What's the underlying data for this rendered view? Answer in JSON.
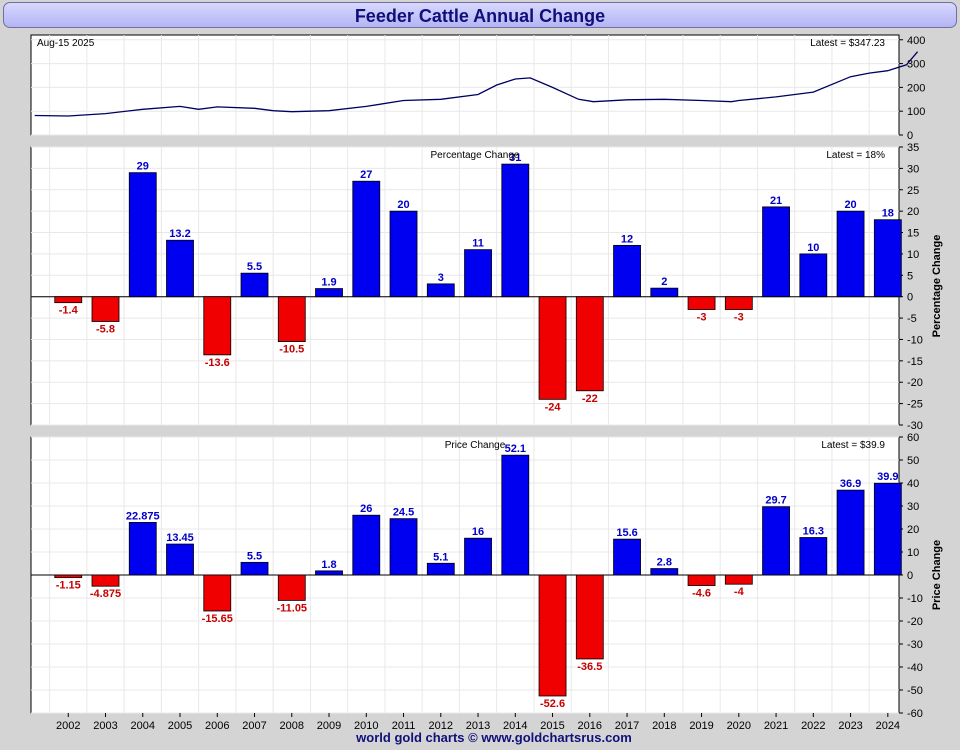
{
  "title": "Feeder Cattle Annual Change",
  "footer": "world gold charts © www.goldchartsrus.com",
  "colors": {
    "positive": "#0000f0",
    "negative": "#f00000",
    "price_line": "#000060",
    "pos_label": "#0000c8",
    "neg_label": "#c80000"
  },
  "chart_data": [
    {
      "type": "line",
      "panel": "price",
      "header_left": "Aug-15  2025",
      "header_right": "Latest = $347.23",
      "ylim": [
        0,
        420
      ],
      "yticks": [
        0,
        100,
        200,
        300,
        400
      ],
      "x": [
        2001.6,
        2002.5,
        2003.5,
        2004.5,
        2005.5,
        2006.0,
        2006.5,
        2007.5,
        2008.0,
        2008.5,
        2009.5,
        2010.5,
        2011.5,
        2012.5,
        2013.5,
        2014.0,
        2014.5,
        2014.9,
        2015.5,
        2016.2,
        2016.6,
        2017.5,
        2018.5,
        2019.5,
        2020.3,
        2020.5,
        2021.5,
        2022.5,
        2023.5,
        2024.0,
        2024.5,
        2025.0,
        2025.3
      ],
      "y": [
        82,
        80,
        90,
        108,
        120,
        108,
        118,
        112,
        102,
        98,
        102,
        120,
        145,
        150,
        170,
        210,
        235,
        240,
        200,
        150,
        140,
        148,
        150,
        145,
        140,
        145,
        160,
        180,
        245,
        260,
        270,
        295,
        350
      ],
      "y_is_estimate": true
    },
    {
      "type": "bar",
      "panel": "percentage",
      "title": "Percentage Change",
      "header_right": "Latest = 18%",
      "ylabel": "Percentage Change",
      "ylim": [
        -30,
        35
      ],
      "yticks": [
        -30,
        -25,
        -20,
        -15,
        -10,
        -5,
        0,
        5,
        10,
        15,
        20,
        25,
        30,
        35
      ],
      "categories": [
        "2002",
        "2003",
        "2004",
        "2005",
        "2006",
        "2007",
        "2008",
        "2009",
        "2010",
        "2011",
        "2012",
        "2013",
        "2014",
        "2015",
        "2016",
        "2017",
        "2018",
        "2019",
        "2020",
        "2021",
        "2022",
        "2023",
        "2024"
      ],
      "values": [
        -1.4,
        -5.8,
        29,
        13.2,
        -13.6,
        5.5,
        -10.5,
        1.9,
        27,
        20,
        3,
        11,
        31,
        -24,
        -22,
        12,
        2,
        -3,
        -3,
        21,
        10,
        20,
        18
      ],
      "labels": [
        "-1.4",
        "-5.8",
        "29",
        "13.2",
        "-13.6",
        "5.5",
        "-10.5",
        "1.9",
        "27",
        "20",
        "3",
        "11",
        "31",
        "-24",
        "-22",
        "12",
        "2",
        "-3",
        "-3",
        "21",
        "10",
        "20",
        "18"
      ],
      "grid": true
    },
    {
      "type": "bar",
      "panel": "pricechange",
      "title": "Price Change",
      "header_right": "Latest = $39.9",
      "ylabel": "Price Change",
      "ylim": [
        -60,
        60
      ],
      "yticks": [
        -60,
        -50,
        -40,
        -30,
        -20,
        -10,
        0,
        10,
        20,
        30,
        40,
        50,
        60
      ],
      "categories": [
        "2002",
        "2003",
        "2004",
        "2005",
        "2006",
        "2007",
        "2008",
        "2009",
        "2010",
        "2011",
        "2012",
        "2013",
        "2014",
        "2015",
        "2016",
        "2017",
        "2018",
        "2019",
        "2020",
        "2021",
        "2022",
        "2023",
        "2024"
      ],
      "values": [
        -1.15,
        -4.875,
        22.875,
        13.45,
        -15.65,
        5.5,
        -11.05,
        1.8,
        26,
        24.5,
        5.1,
        16,
        52.1,
        -52.6,
        -36.5,
        15.6,
        2.8,
        -4.6,
        -4,
        29.7,
        16.3,
        36.9,
        39.9
      ],
      "labels": [
        "-1.15",
        "-4.875",
        "22.875",
        "13.45",
        "-15.65",
        "5.5",
        "-11.05",
        "1.8",
        "26",
        "24.5",
        "5.1",
        "16",
        "52.1",
        "-52.6",
        "-36.5",
        "15.6",
        "2.8",
        "-4.6",
        "-4",
        "29.7",
        "16.3",
        "36.9",
        "39.9"
      ],
      "grid": true
    }
  ]
}
